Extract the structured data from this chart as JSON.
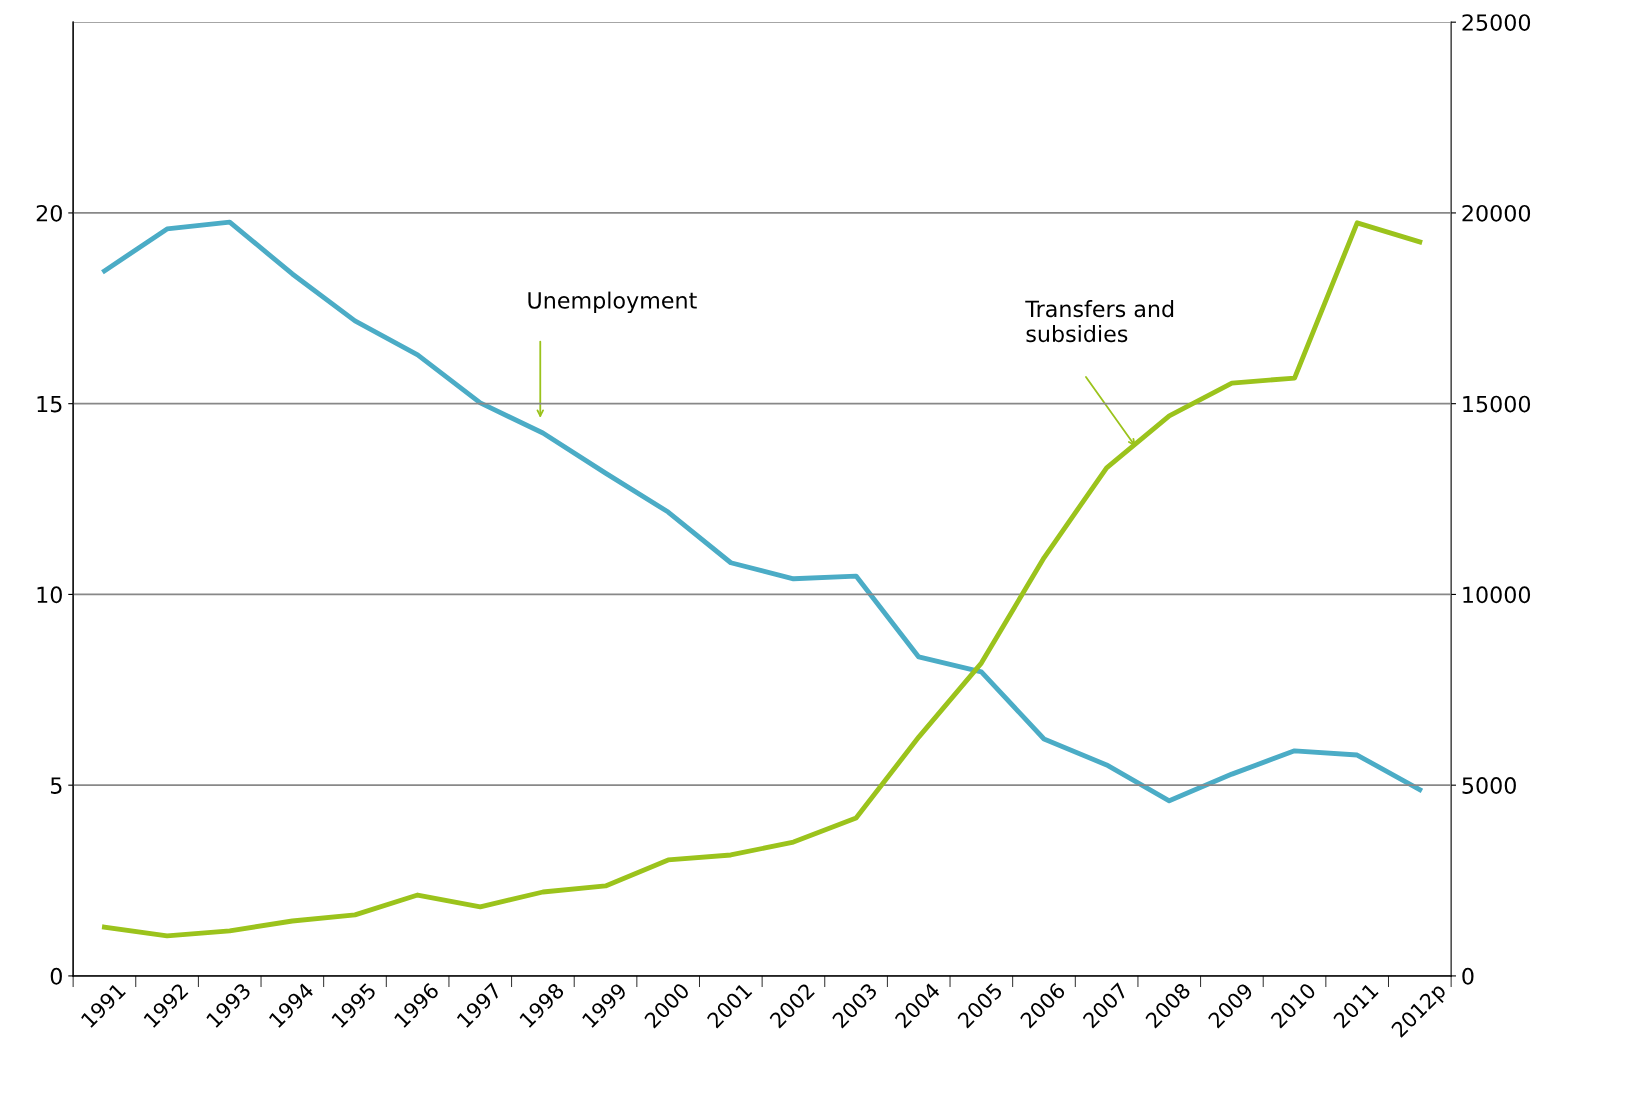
{
  "chart_data": {
    "type": "line",
    "categories": [
      "1991",
      "1992",
      "1993",
      "1994",
      "1995",
      "1996",
      "1997",
      "1998",
      "1999",
      "2000",
      "2001",
      "2002",
      "2003",
      "2004",
      "2005",
      "2006",
      "2007",
      "2008",
      "2009",
      "2010",
      "2011",
      "2012p"
    ],
    "series": [
      {
        "color": "#4bacc6",
        "values": [
          18.48,
          19.58,
          19.76,
          18.4,
          17.17,
          16.28,
          15.02,
          14.23,
          13.18,
          12.16,
          10.83,
          10.41,
          10.48,
          8.36,
          7.97,
          6.21,
          5.53,
          4.59,
          5.29,
          5.9,
          5.79,
          4.88
        ]
      },
      {
        "color": "#9bc31c",
        "axis": "y2",
        "values": [
          1280,
          1050,
          1180,
          1440,
          1600,
          2120,
          1810,
          2200,
          2360,
          3040,
          3170,
          3510,
          4140,
          6260,
          8200,
          10960,
          13320,
          14680,
          15540,
          15670,
          19740,
          19240
        ]
      }
    ],
    "ylim": [
      0,
      25
    ],
    "yticks": [
      0,
      5,
      10,
      15,
      20
    ],
    "y2lim": [
      0,
      25000
    ],
    "y2ticks": [
      0,
      5000,
      10000,
      15000,
      20000,
      25000
    ],
    "annotations": [
      "Unemployment",
      "Transfers and\nsubsidies"
    ],
    "grid": "y",
    "legend": false,
    "marker": "none",
    "line_style": "solid"
  }
}
